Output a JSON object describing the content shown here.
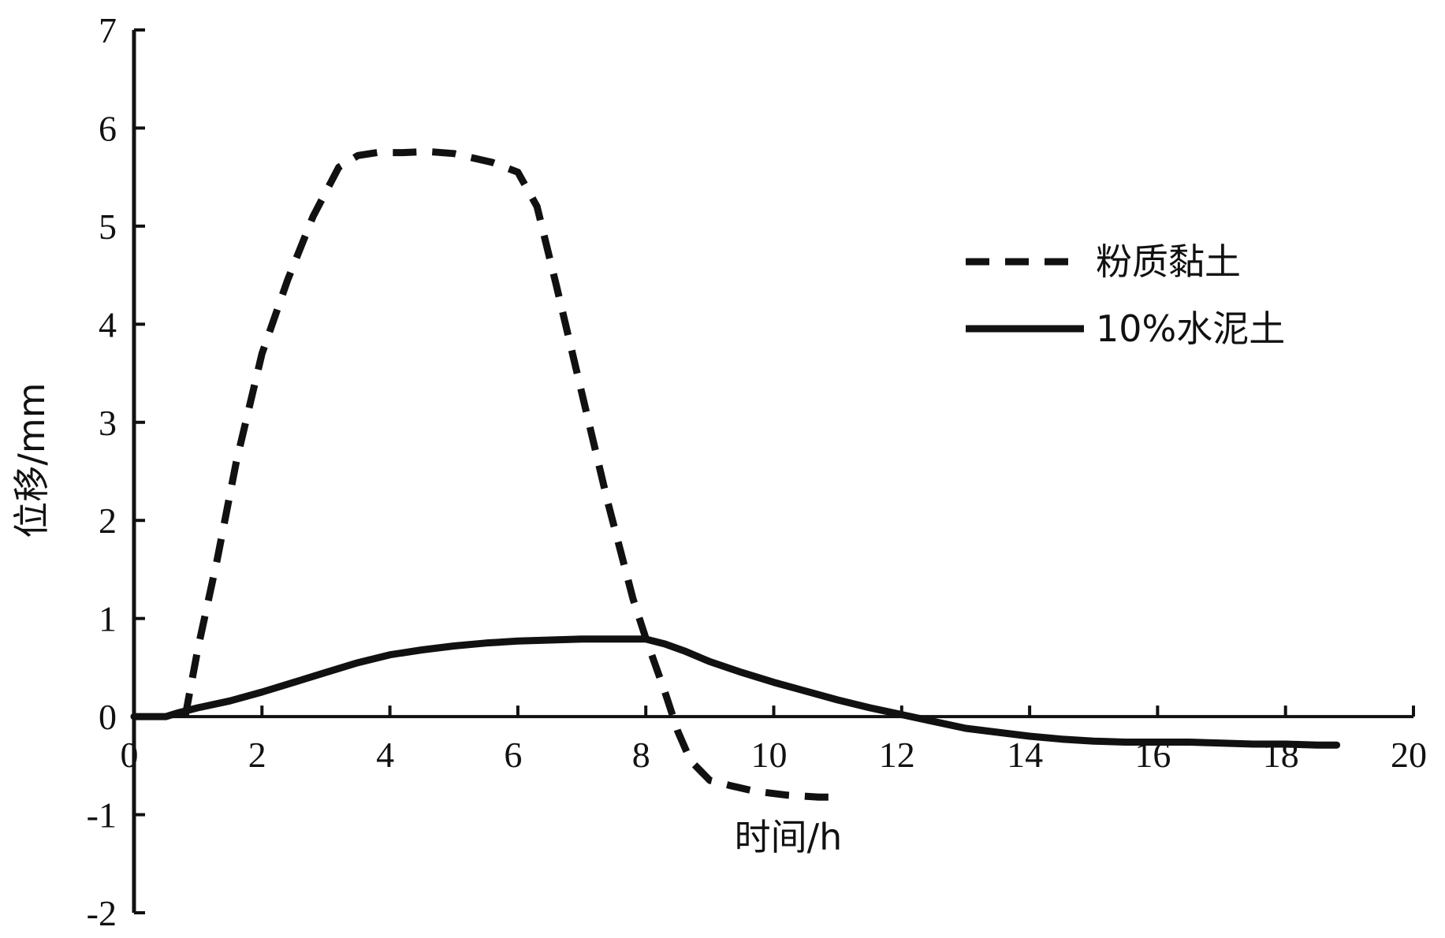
{
  "chart_data": {
    "type": "line",
    "title": "",
    "xlabel": "时间/h",
    "ylabel": "位移/mm",
    "xlim": [
      0,
      20
    ],
    "ylim": [
      -2,
      7
    ],
    "xticks": [
      "0",
      "2",
      "4",
      "6",
      "8",
      "10",
      "12",
      "14",
      "16",
      "18",
      "20"
    ],
    "yticks": [
      "-2",
      "-1",
      "0",
      "1",
      "2",
      "3",
      "4",
      "5",
      "6",
      "7"
    ],
    "grid": false,
    "legend_position": "top-right",
    "series": [
      {
        "name": "粉质黏土",
        "style": "dashed",
        "color": "#111111",
        "x": [
          0.8,
          1.0,
          1.3,
          1.6,
          2.0,
          2.4,
          2.8,
          3.2,
          3.5,
          3.8,
          4.2,
          4.6,
          5.0,
          5.6,
          6.0,
          6.3,
          6.6,
          7.0,
          7.4,
          7.8,
          8.0,
          8.3,
          8.5,
          8.7,
          9.0,
          9.3,
          9.7,
          10.2,
          10.7,
          11.1
        ],
        "y": [
          0.0,
          0.7,
          1.6,
          2.6,
          3.7,
          4.45,
          5.1,
          5.6,
          5.72,
          5.75,
          5.75,
          5.76,
          5.74,
          5.65,
          5.55,
          5.2,
          4.4,
          3.3,
          2.2,
          1.2,
          0.8,
          0.25,
          -0.15,
          -0.45,
          -0.65,
          -0.7,
          -0.76,
          -0.8,
          -0.82,
          -0.82
        ]
      },
      {
        "name": "10%水泥土",
        "style": "solid",
        "color": "#111111",
        "x": [
          0.0,
          0.5,
          0.7,
          1.0,
          1.5,
          2.0,
          2.5,
          3.0,
          3.5,
          4.0,
          4.5,
          5.0,
          5.5,
          6.0,
          6.5,
          7.0,
          7.5,
          8.0,
          8.3,
          8.6,
          9.0,
          9.5,
          10.0,
          10.5,
          11.0,
          11.5,
          12.0,
          12.5,
          13.0,
          13.5,
          14.0,
          14.5,
          15.0,
          15.5,
          16.0,
          16.5,
          17.0,
          17.5,
          18.0,
          18.5,
          18.8
        ],
        "y": [
          0.0,
          0.0,
          0.04,
          0.09,
          0.16,
          0.25,
          0.35,
          0.45,
          0.55,
          0.63,
          0.68,
          0.72,
          0.75,
          0.77,
          0.78,
          0.79,
          0.79,
          0.79,
          0.74,
          0.67,
          0.56,
          0.45,
          0.35,
          0.26,
          0.17,
          0.09,
          0.02,
          -0.05,
          -0.12,
          -0.16,
          -0.2,
          -0.23,
          -0.25,
          -0.26,
          -0.26,
          -0.26,
          -0.27,
          -0.28,
          -0.28,
          -0.29,
          -0.29
        ]
      }
    ]
  }
}
